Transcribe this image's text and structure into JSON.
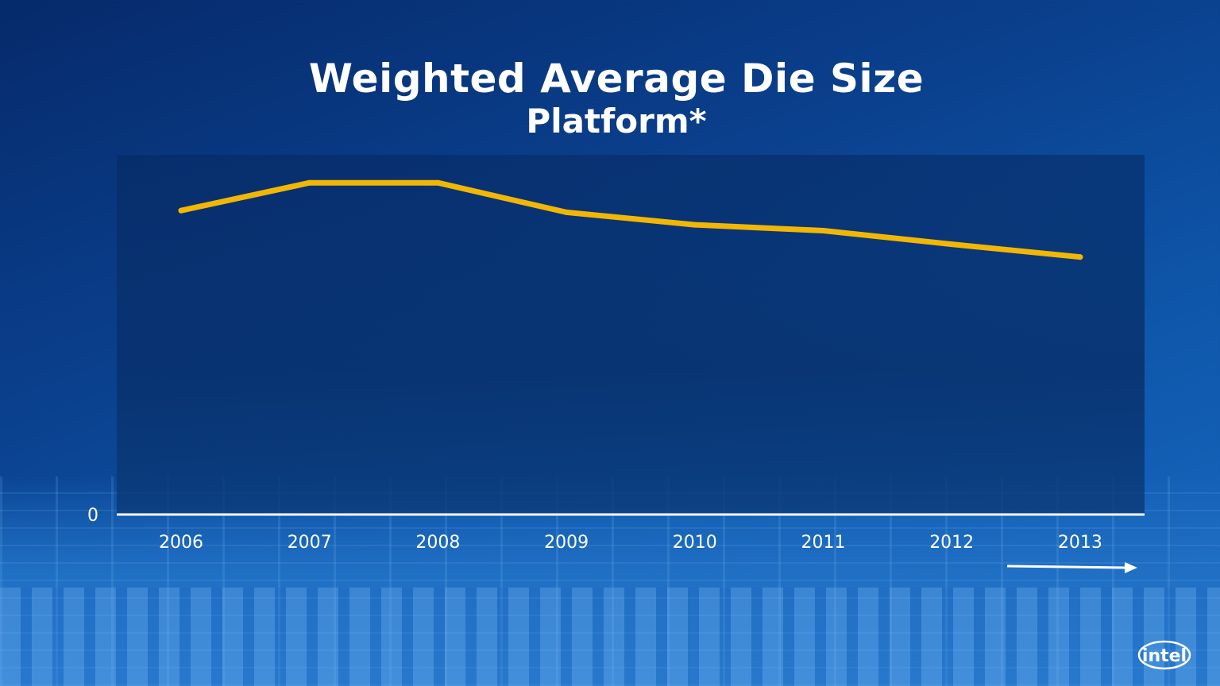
{
  "slide": {
    "title": "Weighted Average Die Size",
    "subtitle": "Platform*",
    "logo_text": "intel",
    "colors": {
      "line": "#f2b705",
      "axis": "#ffffff",
      "background": "#0a3f8c"
    }
  },
  "chart_data": {
    "type": "line",
    "title": "Weighted Average Die Size",
    "subtitle": "Platform*",
    "categories": [
      "2006",
      "2007",
      "2008",
      "2009",
      "2010",
      "2011",
      "2012",
      "2013"
    ],
    "series": [
      {
        "values": [
          0.876,
          0.956,
          0.956,
          0.871,
          0.835,
          0.818,
          0.779,
          0.742
        ],
        "color": "#f2b705"
      }
    ],
    "yticks": [
      "0"
    ],
    "ylim": [
      0,
      1
    ],
    "xlabel": "",
    "ylabel": "",
    "grid": false,
    "legend": "none",
    "annotation": "arrow to the right"
  }
}
